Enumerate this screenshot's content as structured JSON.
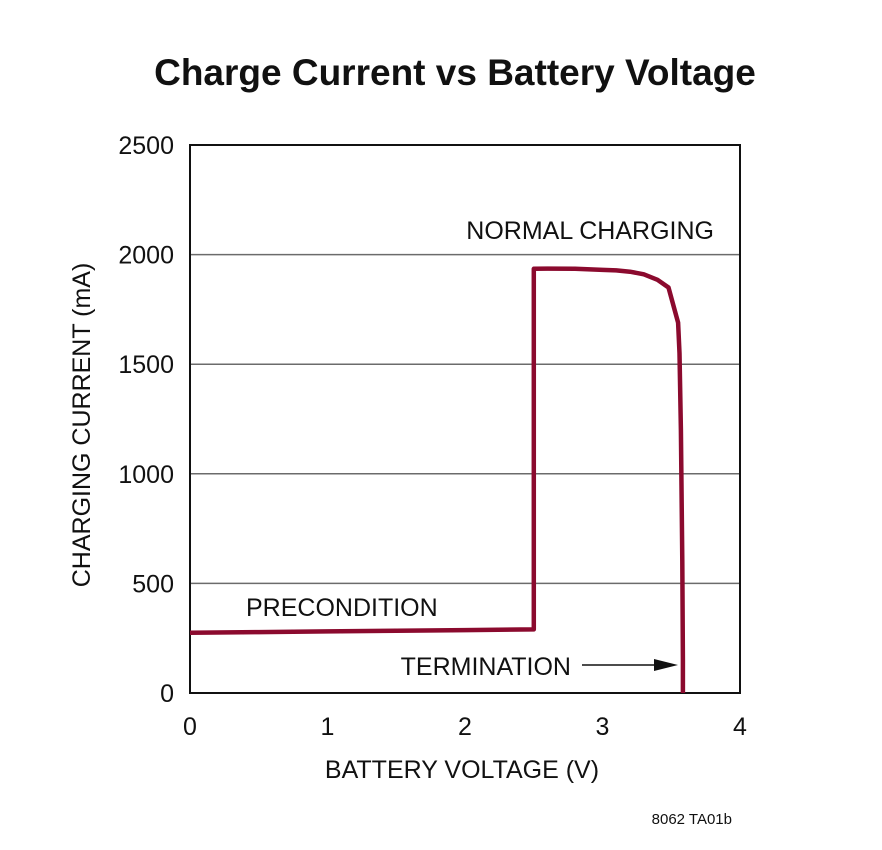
{
  "chart_data": {
    "type": "line",
    "title": "Charge Current vs Battery Voltage",
    "xlabel": "BATTERY VOLTAGE (V)",
    "ylabel": "CHARGING CURRENT (mA)",
    "xlim": [
      0,
      4
    ],
    "ylim": [
      0,
      2500
    ],
    "xticks": [
      "0",
      "1",
      "2",
      "3",
      "4"
    ],
    "yticks": [
      "0",
      "500",
      "1000",
      "1500",
      "2000",
      "2500"
    ],
    "grid": "horizontal",
    "color": "#8b0a2e",
    "series": [
      {
        "x": [
          0,
          0.5,
          1.0,
          1.5,
          2.0,
          2.5,
          2.5,
          2.6,
          2.8,
          3.0,
          3.1,
          3.2,
          3.3,
          3.4,
          3.48,
          3.55,
          3.56,
          3.57,
          3.58,
          3.585,
          3.585
        ],
        "y": [
          275,
          278,
          281,
          284,
          287,
          290,
          1935,
          1936,
          1935,
          1930,
          1928,
          1922,
          1910,
          1885,
          1850,
          1690,
          1550,
          1200,
          600,
          150,
          0
        ]
      }
    ],
    "annotations": {
      "normal_charging": "NORMAL CHARGING",
      "precondition": "PRECONDITION",
      "termination": "TERMINATION"
    }
  },
  "figure_code": "8062 TA01b"
}
